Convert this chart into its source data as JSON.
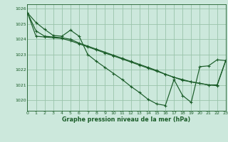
{
  "title": "Graphe pression niveau de la mer (hPa)",
  "bg_color": "#cce8dc",
  "grid_color": "#99c4aa",
  "line_color": "#1a5c28",
  "xlim": [
    0,
    23
  ],
  "ylim": [
    1019.3,
    1026.3
  ],
  "yticks": [
    1020,
    1021,
    1022,
    1023,
    1024,
    1025,
    1026
  ],
  "xticks": [
    0,
    1,
    2,
    3,
    4,
    5,
    6,
    7,
    8,
    9,
    10,
    11,
    12,
    13,
    14,
    15,
    16,
    17,
    18,
    19,
    20,
    21,
    22,
    23
  ],
  "series": [
    [
      1025.75,
      1025.1,
      1024.65,
      1024.25,
      1024.2,
      1024.6,
      1024.2,
      1023.0,
      1022.55,
      1022.15,
      1021.75,
      1021.35,
      1020.9,
      1020.5,
      1020.05,
      1019.75,
      1019.65,
      1021.35,
      1020.3,
      1019.85,
      1022.2,
      1022.25,
      1022.65,
      1022.6
    ],
    [
      1025.75,
      1024.55,
      1024.2,
      1024.15,
      1024.1,
      1024.0,
      1023.75,
      1023.55,
      1023.35,
      1023.15,
      1022.95,
      1022.75,
      1022.55,
      1022.35,
      1022.15,
      1021.95,
      1021.7,
      1021.5,
      1021.35,
      1021.2,
      1021.1,
      1021.0,
      1021.0,
      1022.6
    ],
    [
      1025.75,
      1024.2,
      1024.15,
      1024.1,
      1024.05,
      1023.9,
      1023.7,
      1023.5,
      1023.3,
      1023.1,
      1022.9,
      1022.7,
      1022.5,
      1022.3,
      1022.1,
      1021.9,
      1021.7,
      1021.5,
      1021.3,
      1021.2,
      1021.1,
      1021.0,
      1020.95,
      1022.6
    ]
  ]
}
